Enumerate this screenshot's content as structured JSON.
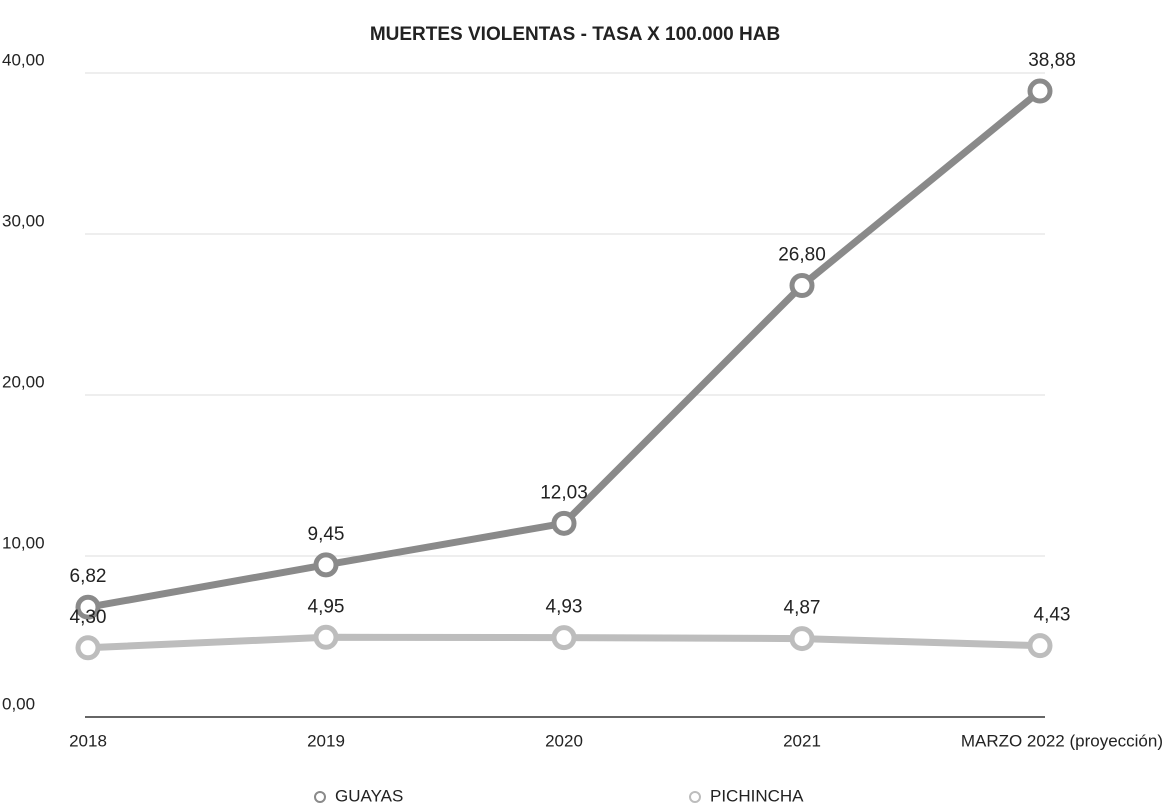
{
  "chart_data": {
    "type": "line",
    "title": "MUERTES VIOLENTAS - TASA X 100.000 HAB",
    "categories": [
      "2018",
      "2019",
      "2020",
      "2021",
      "MARZO 2022 (proyección)"
    ],
    "series": [
      {
        "name": "GUAYAS",
        "color": "#8a8a8a",
        "values": [
          6.82,
          9.45,
          12.03,
          26.8,
          38.88
        ],
        "value_labels": [
          "6,82",
          "9,45",
          "12,03",
          "26,80",
          "38,88"
        ]
      },
      {
        "name": "PICHINCHA",
        "color": "#bdbdbd",
        "values": [
          4.3,
          4.95,
          4.93,
          4.87,
          4.43
        ],
        "value_labels": [
          "4,30",
          "4,95",
          "4,93",
          "4,87",
          "4,43"
        ]
      }
    ],
    "ylim": [
      0,
      40
    ],
    "yticks": [
      {
        "value": 0,
        "label": "0,00"
      },
      {
        "value": 10,
        "label": "10,00"
      },
      {
        "value": 20,
        "label": "20,00"
      },
      {
        "value": 30,
        "label": "30,00"
      },
      {
        "value": 40,
        "label": "40,00"
      }
    ],
    "grid": true,
    "legend": "bottom"
  }
}
